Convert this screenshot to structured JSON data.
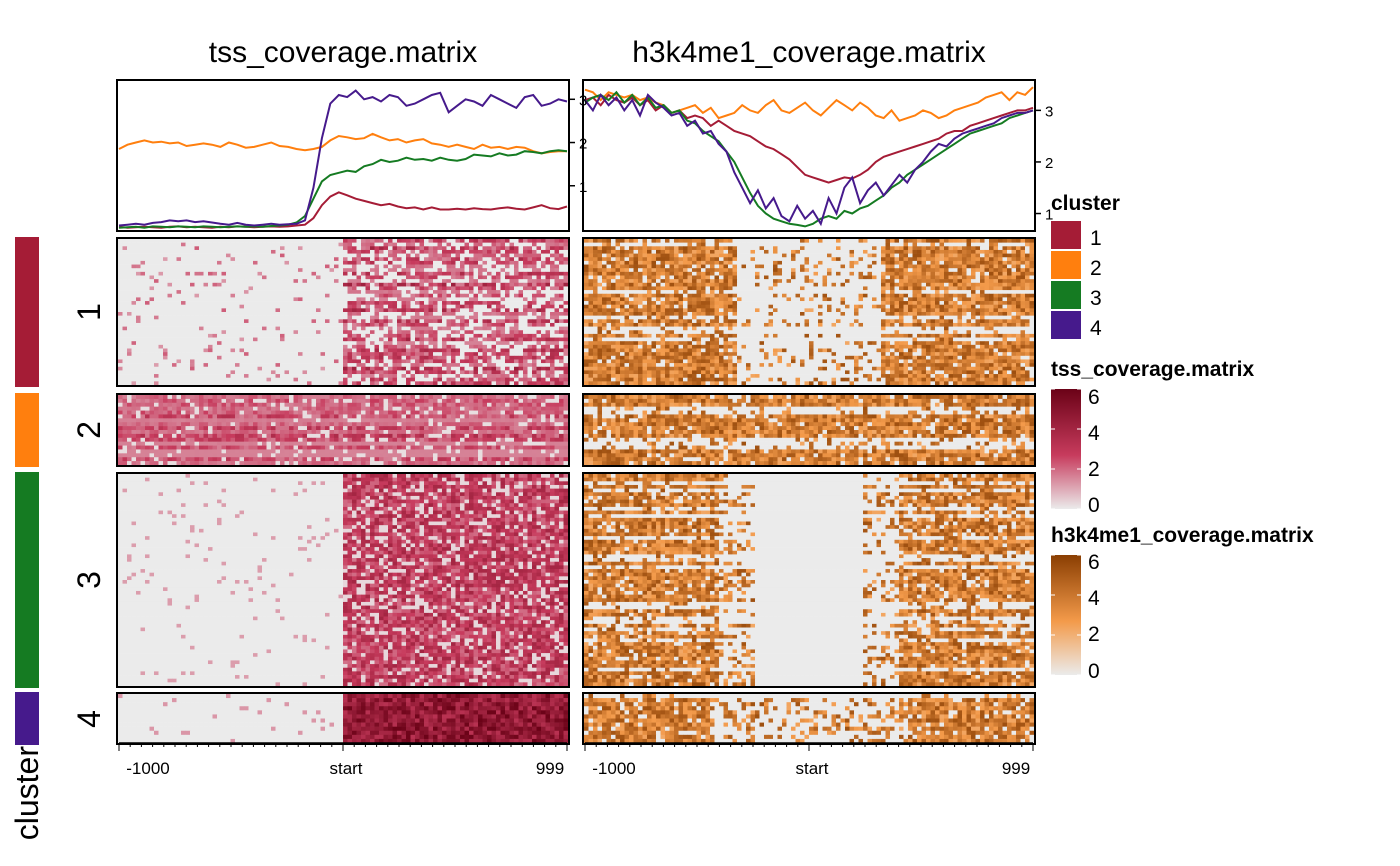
{
  "colors": {
    "cluster": [
      "#a51c36",
      "#ff7f0e",
      "#157b22",
      "#461a8c"
    ],
    "tss_scale": [
      "#ebebeb",
      "#c73b5d",
      "#6b0217"
    ],
    "h3k4me1_scale": [
      "#ebebeb",
      "#f39a4a",
      "#8a3e02"
    ]
  },
  "chart_data": {
    "type": "heatmap",
    "row_split_name": "cluster",
    "clusters": [
      "1",
      "2",
      "3",
      "4"
    ],
    "cluster_row_counts": [
      40,
      18,
      58,
      12
    ],
    "x_tick_labels": [
      "-1000",
      "start",
      "999"
    ],
    "panels": [
      {
        "title": "tss_coverage.matrix",
        "y_ticks": [
          "1",
          "2",
          "3"
        ],
        "y_range": [
          0,
          3.4
        ],
        "profiles": [
          {
            "cluster": "1",
            "values": [
              0.05,
              0.03,
              0.04,
              0.05,
              0.04,
              0.03,
              0.05,
              0.06,
              0.04,
              0.05,
              0.04,
              0.03,
              0.05,
              0.04,
              0.06,
              0.05,
              0.04,
              0.05,
              0.06,
              0.05,
              0.06,
              0.08,
              0.1,
              0.25,
              0.55,
              0.75,
              0.85,
              0.78,
              0.7,
              0.65,
              0.6,
              0.55,
              0.58,
              0.52,
              0.48,
              0.5,
              0.45,
              0.5,
              0.45,
              0.45,
              0.47,
              0.45,
              0.48,
              0.46,
              0.45,
              0.48,
              0.5,
              0.47,
              0.45,
              0.5,
              0.55,
              0.48,
              0.46,
              0.52
            ]
          },
          {
            "cluster": "2",
            "values": [
              1.85,
              1.95,
              2.0,
              2.05,
              2.0,
              2.02,
              1.98,
              2.0,
              1.92,
              1.95,
              1.98,
              1.95,
              1.9,
              2.0,
              1.95,
              1.88,
              1.9,
              1.95,
              2.0,
              1.92,
              1.9,
              1.85,
              1.82,
              1.85,
              1.9,
              2.05,
              2.15,
              2.12,
              2.08,
              2.1,
              2.2,
              2.12,
              2.05,
              2.08,
              2.0,
              2.05,
              2.08,
              1.98,
              1.95,
              1.9,
              1.95,
              1.9,
              1.85,
              1.95,
              1.88,
              1.9,
              1.85,
              1.9,
              1.88,
              1.8,
              1.75,
              1.78,
              1.8,
              1.8
            ]
          },
          {
            "cluster": "3",
            "values": [
              0.03,
              0.04,
              0.05,
              0.03,
              0.06,
              0.05,
              0.04,
              0.06,
              0.05,
              0.04,
              0.06,
              0.05,
              0.04,
              0.05,
              0.06,
              0.05,
              0.06,
              0.05,
              0.07,
              0.08,
              0.1,
              0.15,
              0.3,
              0.7,
              1.1,
              1.25,
              1.3,
              1.35,
              1.32,
              1.45,
              1.5,
              1.6,
              1.55,
              1.58,
              1.65,
              1.6,
              1.62,
              1.58,
              1.65,
              1.6,
              1.58,
              1.62,
              1.72,
              1.7,
              1.68,
              1.75,
              1.7,
              1.72,
              1.8,
              1.78,
              1.75,
              1.8,
              1.82,
              1.8
            ]
          },
          {
            "cluster": "4",
            "values": [
              0.08,
              0.1,
              0.12,
              0.1,
              0.14,
              0.16,
              0.2,
              0.18,
              0.2,
              0.16,
              0.18,
              0.15,
              0.12,
              0.1,
              0.14,
              0.1,
              0.08,
              0.1,
              0.12,
              0.1,
              0.11,
              0.12,
              0.2,
              0.95,
              2.1,
              2.9,
              3.1,
              3.05,
              3.2,
              3.0,
              3.05,
              2.95,
              3.1,
              3.05,
              2.85,
              2.9,
              3.0,
              3.1,
              3.15,
              2.7,
              2.85,
              3.0,
              2.95,
              2.85,
              3.1,
              3.0,
              2.9,
              2.8,
              3.05,
              3.1,
              2.85,
              2.9,
              3.0,
              2.95
            ]
          }
        ]
      },
      {
        "title": "h3k4me1_coverage.matrix",
        "y_ticks": [
          "1",
          "2",
          "3"
        ],
        "y_range": [
          0.7,
          3.55
        ],
        "profiles": [
          {
            "cluster": "1",
            "values": [
              3.2,
              3.25,
              3.1,
              3.3,
              3.2,
              3.15,
              3.25,
              3.1,
              3.2,
              3.0,
              3.1,
              2.95,
              3.0,
              2.85,
              2.9,
              2.85,
              2.7,
              2.8,
              2.7,
              2.6,
              2.55,
              2.5,
              2.4,
              2.3,
              2.25,
              2.15,
              2.05,
              1.9,
              1.75,
              1.7,
              1.65,
              1.6,
              1.65,
              1.7,
              1.68,
              1.75,
              1.85,
              2.0,
              2.1,
              2.15,
              2.2,
              2.25,
              2.3,
              2.35,
              2.4,
              2.45,
              2.55,
              2.6,
              2.6,
              2.7,
              2.75,
              2.8,
              2.85,
              2.9,
              2.95,
              3.0,
              3.0,
              3.05
            ]
          },
          {
            "cluster": "2",
            "values": [
              3.4,
              3.35,
              3.2,
              3.35,
              3.3,
              3.25,
              3.3,
              3.2,
              3.25,
              3.15,
              3.1,
              2.95,
              3.0,
              3.05,
              3.1,
              2.95,
              3.05,
              2.85,
              2.9,
              2.95,
              3.1,
              3.0,
              2.95,
              3.1,
              3.2,
              3.0,
              2.95,
              3.05,
              3.15,
              3.0,
              2.9,
              3.05,
              3.2,
              3.1,
              3.0,
              3.15,
              3.05,
              2.9,
              2.85,
              3.0,
              2.8,
              2.85,
              2.9,
              3.0,
              2.95,
              2.85,
              2.9,
              3.0,
              3.05,
              3.1,
              3.15,
              3.25,
              3.3,
              3.35,
              3.2,
              3.35,
              3.3,
              3.45
            ]
          },
          {
            "cluster": "3",
            "values": [
              3.15,
              3.25,
              3.3,
              3.2,
              3.35,
              3.15,
              3.3,
              3.1,
              3.25,
              3.05,
              3.1,
              2.95,
              3.0,
              2.8,
              2.75,
              2.6,
              2.5,
              2.4,
              2.2,
              2.0,
              1.7,
              1.4,
              1.15,
              1.0,
              0.9,
              0.85,
              0.8,
              0.78,
              0.75,
              0.8,
              0.9,
              0.95,
              0.9,
              1.05,
              1.0,
              1.1,
              1.15,
              1.25,
              1.35,
              1.5,
              1.6,
              1.75,
              1.85,
              1.95,
              2.05,
              2.15,
              2.25,
              2.35,
              2.45,
              2.55,
              2.6,
              2.65,
              2.7,
              2.75,
              2.85,
              2.9,
              2.95,
              3.0
            ]
          },
          {
            "cluster": "4",
            "values": [
              3.2,
              3.0,
              3.3,
              3.1,
              3.25,
              3.0,
              3.2,
              2.9,
              3.3,
              3.15,
              3.05,
              2.9,
              2.95,
              2.7,
              2.8,
              2.55,
              2.6,
              2.35,
              2.2,
              1.8,
              1.5,
              1.2,
              1.45,
              1.1,
              1.3,
              0.95,
              0.85,
              1.15,
              0.9,
              1.05,
              0.8,
              1.3,
              1.0,
              1.5,
              1.7,
              1.2,
              1.45,
              1.6,
              1.35,
              1.55,
              1.75,
              1.6,
              1.85,
              2.0,
              2.2,
              2.35,
              2.3,
              2.45,
              2.55,
              2.6,
              2.65,
              2.7,
              2.75,
              2.85,
              2.9,
              2.95,
              2.95,
              3.0
            ]
          }
        ]
      }
    ],
    "legends": [
      {
        "title": "cluster",
        "entries": [
          "1",
          "2",
          "3",
          "4"
        ]
      },
      {
        "title": "tss_coverage.matrix",
        "ticks": [
          "6",
          "4",
          "2",
          "0"
        ],
        "range": [
          0,
          6
        ]
      },
      {
        "title": "h3k4me1_coverage.matrix",
        "ticks": [
          "6",
          "4",
          "2",
          "0"
        ],
        "range": [
          0,
          6
        ]
      }
    ]
  }
}
